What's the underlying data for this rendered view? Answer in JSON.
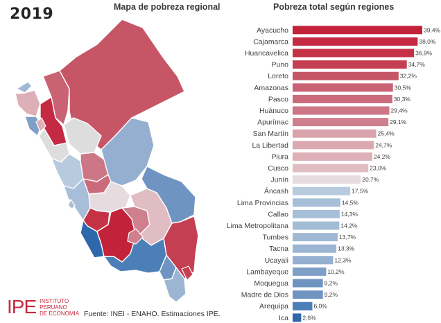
{
  "header": {
    "year": "2019",
    "map_title": "Mapa de pobreza regional",
    "chart_title": "Pobreza total según regiones"
  },
  "footer": {
    "logo_mark": "IPE",
    "logo_line1": "INSTITUTO",
    "logo_line2": "PERUANO",
    "logo_line3": "DE ECONOMIA",
    "source": "Fuente: INEI - ENAHO. Estimaciones IPE."
  },
  "colors": {
    "dark_red": "#c2223a",
    "mid_red": "#c65666",
    "light_red": "#dba2ab",
    "pale": "#ece4e6",
    "light_blue": "#b7cade",
    "mid_blue": "#86a6c9",
    "dark_blue": "#3a74b3"
  },
  "chart_data": {
    "type": "bar",
    "orientation": "horizontal",
    "title": "Pobreza total según regiones",
    "xlabel": "",
    "ylabel": "",
    "xlim": [
      0,
      40
    ],
    "grid": false,
    "legend": "none",
    "categories": [
      "Ayacucho",
      "Cajamarca",
      "Huancavelica",
      "Puno",
      "Loreto",
      "Amazonas",
      "Pasco",
      "Huánuco",
      "Apurímac",
      "San Martín",
      "La Libertad",
      "Piura",
      "Cusco",
      "Junín",
      "Áncash",
      "Lima Provincias",
      "Callao",
      "Lima Metropolitana",
      "Tumbes",
      "Tacna",
      "Ucayali",
      "Lambayeque",
      "Moquegua",
      "Madre de Dios",
      "Arequipa",
      "Ica"
    ],
    "values": [
      39.4,
      38.0,
      36.9,
      34.7,
      32.2,
      30.5,
      30.3,
      29.4,
      29.1,
      25.4,
      24.7,
      24.2,
      23.0,
      20.7,
      17.5,
      14.5,
      14.3,
      14.2,
      13.7,
      13.3,
      12.3,
      10.2,
      9.2,
      9.2,
      6.0,
      2.6
    ],
    "value_labels": [
      "39,4%",
      "38,0%",
      "36,9%",
      "34,7%",
      "32,2%",
      "30,5%",
      "30,3%",
      "29,4%",
      "29,1%",
      "25,4%",
      "24,7%",
      "24,2%",
      "23,0%",
      "20,7%",
      "17,5%",
      "14,5%",
      "14,3%",
      "14,2%",
      "13,7%",
      "13,3%",
      "12,3%",
      "10,2%",
      "9,2%",
      "9,2%",
      "6,0%",
      "2,6%"
    ],
    "bar_colors": [
      "#c2223a",
      "#c42a41",
      "#c53245",
      "#c53f52",
      "#c65666",
      "#c96373",
      "#ca6a7a",
      "#cd7685",
      "#cf7f8d",
      "#d9a3ac",
      "#dba9b2",
      "#ddafb7",
      "#e0bdc3",
      "#e6dcdf",
      "#b7cade",
      "#a6bed8",
      "#a6bed8",
      "#a3bcd6",
      "#9fb8d4",
      "#9cb5d2",
      "#94afcf",
      "#7f9fc6",
      "#6f94c1",
      "#6f94c1",
      "#4c7fb8",
      "#2e67aa"
    ]
  }
}
